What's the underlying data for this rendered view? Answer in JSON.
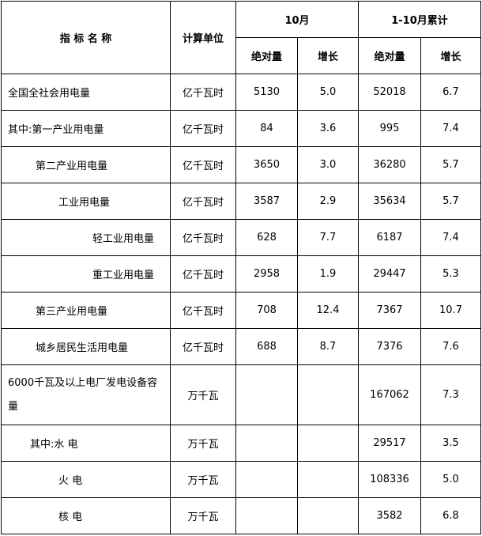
{
  "header": {
    "name_col": "指 标 名 称",
    "unit_col": "计算单位",
    "month_group": "10月",
    "cumulative_group": "1-10月累计",
    "abs_label": "绝对量",
    "growth_label": "增长"
  },
  "rows": [
    {
      "name": "全国全社会用电量",
      "unit": "亿千瓦时",
      "m_abs": "5130",
      "m_growth": "5.0",
      "c_abs": "52018",
      "c_growth": "6.7"
    },
    {
      "name": "其中:第一产业用电量",
      "unit": "亿千瓦时",
      "m_abs": "84",
      "m_growth": "3.6",
      "c_abs": "995",
      "c_growth": "7.4"
    },
    {
      "name": "第二产业用电量",
      "unit": "亿千瓦时",
      "m_abs": "3650",
      "m_growth": "3.0",
      "c_abs": "36280",
      "c_growth": "5.7"
    },
    {
      "name": "工业用电量",
      "unit": "亿千瓦时",
      "m_abs": "3587",
      "m_growth": "2.9",
      "c_abs": "35634",
      "c_growth": "5.7"
    },
    {
      "name": "轻工业用电量",
      "unit": "亿千瓦时",
      "m_abs": "628",
      "m_growth": "7.7",
      "c_abs": "6187",
      "c_growth": "7.4"
    },
    {
      "name": "重工业用电量",
      "unit": "亿千瓦时",
      "m_abs": "2958",
      "m_growth": "1.9",
      "c_abs": "29447",
      "c_growth": "5.3"
    },
    {
      "name": "第三产业用电量",
      "unit": "亿千瓦时",
      "m_abs": "708",
      "m_growth": "12.4",
      "c_abs": "7367",
      "c_growth": "10.7"
    },
    {
      "name": "城乡居民生活用电量",
      "unit": "亿千瓦时",
      "m_abs": "688",
      "m_growth": "8.7",
      "c_abs": "7376",
      "c_growth": "7.6"
    },
    {
      "name": "6000千瓦及以上电厂发电设备容量",
      "unit": "万千瓦",
      "m_abs": "",
      "m_growth": "",
      "c_abs": "167062",
      "c_growth": "7.3"
    },
    {
      "name": "其中:水 电",
      "unit": "万千瓦",
      "m_abs": "",
      "m_growth": "",
      "c_abs": "29517",
      "c_growth": "3.5"
    },
    {
      "name": "火 电",
      "unit": "万千瓦",
      "m_abs": "",
      "m_growth": "",
      "c_abs": "108336",
      "c_growth": "5.0"
    },
    {
      "name": "核 电",
      "unit": "万千瓦",
      "m_abs": "",
      "m_growth": "",
      "c_abs": "3582",
      "c_growth": "6.8"
    }
  ]
}
